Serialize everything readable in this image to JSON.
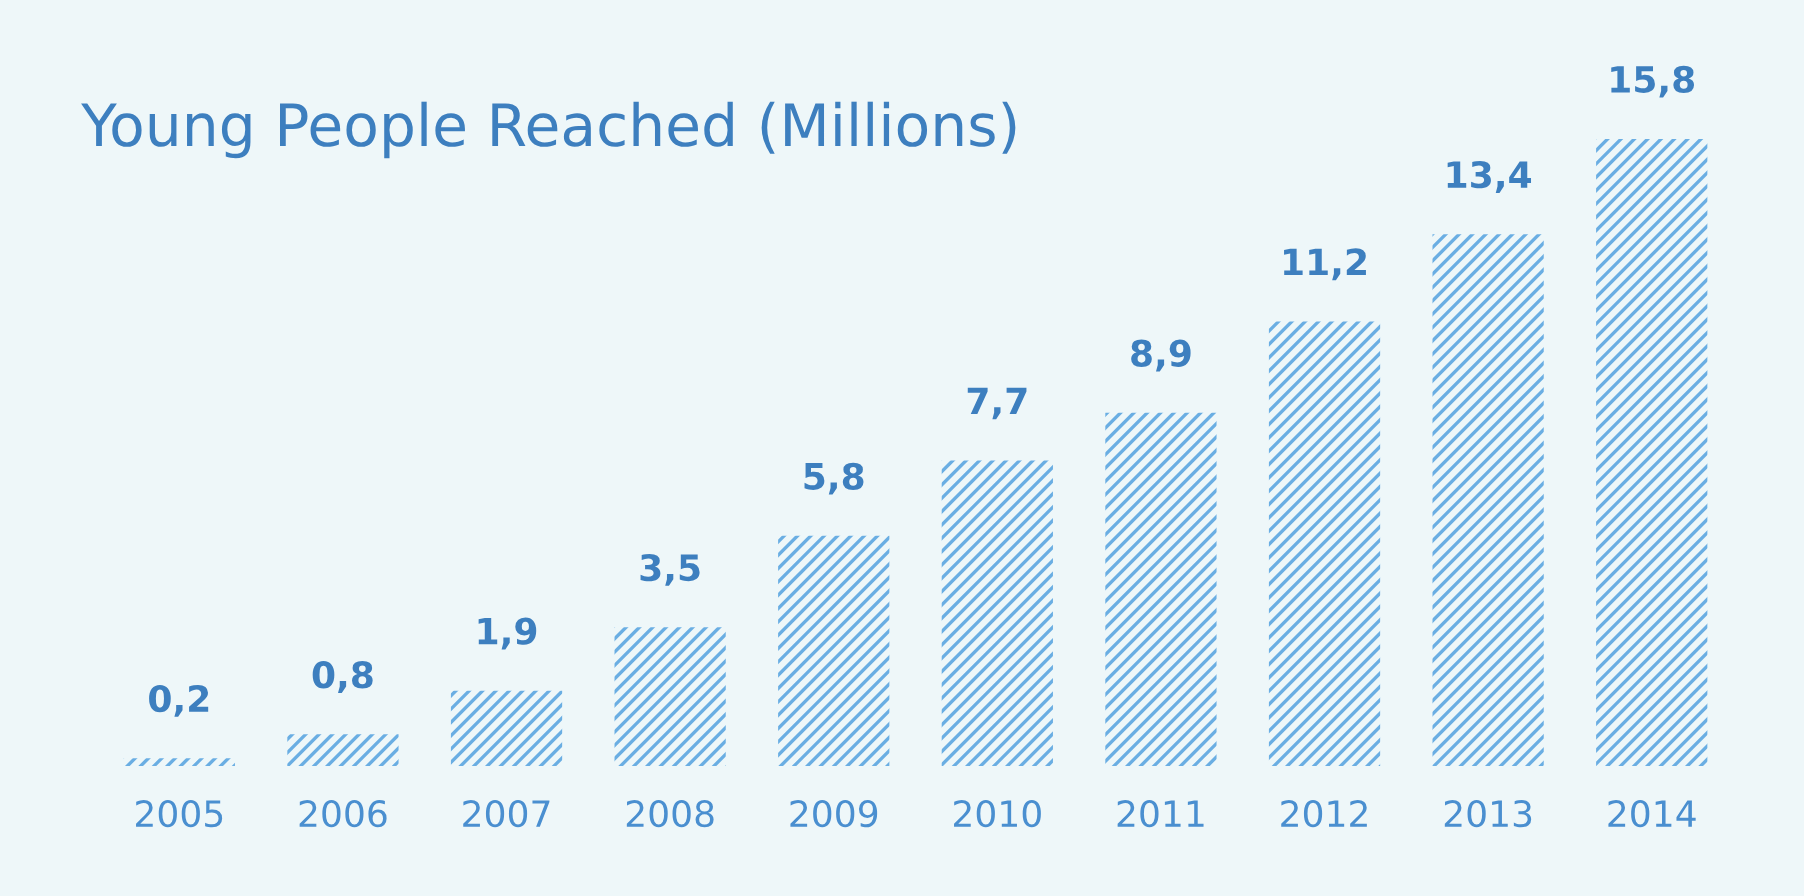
{
  "chart_data": {
    "type": "bar",
    "title": "Young People Reached (Millions)",
    "categories": [
      "2005",
      "2006",
      "2007",
      "2008",
      "2009",
      "2010",
      "2011",
      "2012",
      "2013",
      "2014"
    ],
    "values": [
      0.2,
      0.8,
      1.9,
      3.5,
      5.8,
      7.7,
      8.9,
      11.2,
      13.4,
      15.8
    ],
    "value_labels": [
      "0,2",
      "0,8",
      "1,9",
      "3,5",
      "5,8",
      "7,7",
      "8,9",
      "11,2",
      "13,4",
      "15,8"
    ],
    "color": "#6aaee3",
    "grid": false,
    "legend": false
  }
}
